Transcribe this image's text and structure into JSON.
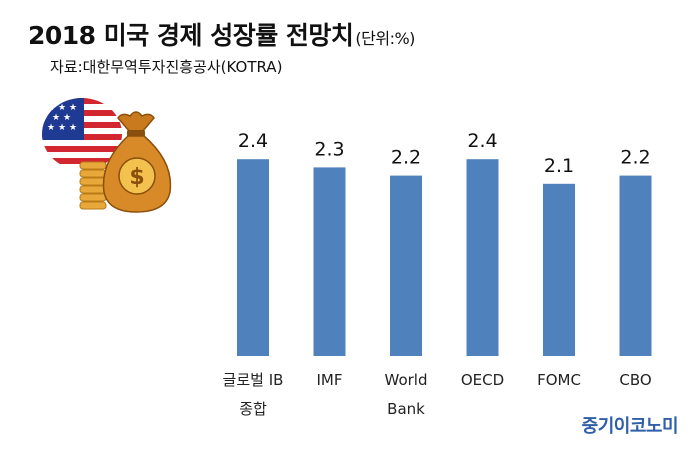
{
  "header": {
    "title": "2018 미국 경제 성장률 전망치",
    "unit": "(단위:%)",
    "source": "자료:대한무역투자진흥공사(KOTRA)"
  },
  "brand": "중기이코노미",
  "colors": {
    "bar": "#4f81bd",
    "brand": "#2f5fa8"
  },
  "illustration": {
    "icons": [
      "us-flag-icon",
      "money-bag-icon",
      "dollar-sign-icon",
      "coin-stack-icon"
    ],
    "dollar_glyph": "$"
  },
  "chart_data": {
    "type": "bar",
    "categories": [
      [
        "글로벌 IB",
        "종합"
      ],
      [
        "IMF"
      ],
      [
        "World",
        "Bank"
      ],
      [
        "OECD"
      ],
      [
        "FOMC"
      ],
      [
        "CBO"
      ]
    ],
    "values": [
      2.4,
      2.3,
      2.2,
      2.4,
      2.1,
      2.2
    ],
    "value_labels": [
      "2.4",
      "2.3",
      "2.2",
      "2.4",
      "2.1",
      "2.2"
    ],
    "title": "2018 미국 경제 성장률 전망치",
    "xlabel": "",
    "ylabel": "",
    "grid": false,
    "legend": "none"
  }
}
